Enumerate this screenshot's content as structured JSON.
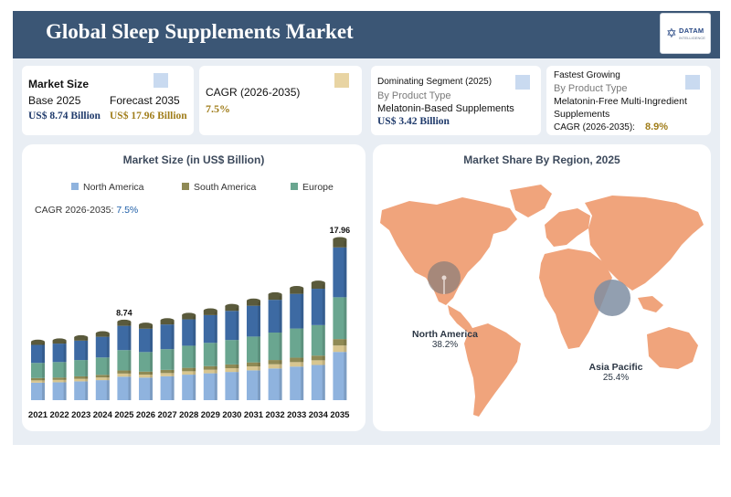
{
  "header": {
    "title": "Global Sleep Supplements Market"
  },
  "logo": {
    "brand": "DATAM",
    "sub": "INTELLIGENCE"
  },
  "cards": {
    "market_size": {
      "heading": "Market Size",
      "base_label": "Base 2025",
      "base_value": "US$ 8.74 Billion",
      "forecast_label": "Forecast 2035",
      "forecast_value": "US$ 17.96 Billion",
      "icon_color": "#c9daf0"
    },
    "cagr": {
      "heading": "CAGR (2026-2035)",
      "value": "7.5%",
      "icon_color": "#e8d4a3"
    },
    "dominating": {
      "heading": "Dominating Segment (2025)",
      "by": "By Product Type",
      "segment": "Melatonin-Based Supplements",
      "value": "US$ 3.42 Billion",
      "icon_color": "#c9daf0"
    },
    "fastest": {
      "heading": "Fastest Growing",
      "by": "By Product Type",
      "segment_line1": "Melatonin-Free Multi-Ingredient",
      "segment_line2": "Supplements",
      "cagr_label": "CAGR (2026-2035):",
      "cagr_value": "8.9%",
      "icon_color": "#c9daf0"
    }
  },
  "market_size_panel": {
    "title": "Market Size (in US$ Billion)",
    "cagr_label": "CAGR 2026-2035:",
    "cagr_value": "7.5%"
  },
  "region_panel": {
    "title": "Market Share By Region, 2025",
    "regions": [
      {
        "name": "North America",
        "share": "38.2%"
      },
      {
        "name": "Asia Pacific",
        "share": "25.4%"
      }
    ]
  },
  "colors": {
    "north_america": "#3d6aa3",
    "south_america": "#8f8a55",
    "europe": "#6aa690",
    "light_blue": "#8fb3de",
    "tan": "#d8c690",
    "top_cap": "#5a5a3c",
    "map": "#f0a47c"
  },
  "chart_data": {
    "type": "bar",
    "stacked": true,
    "categories": [
      "2021",
      "2022",
      "2023",
      "2024",
      "2025",
      "2026",
      "2027",
      "2028",
      "2029",
      "2030",
      "2031",
      "2032",
      "2033",
      "2034",
      "2035"
    ],
    "totals": [
      6.5,
      6.65,
      7.0,
      7.45,
      8.74,
      8.4,
      8.9,
      9.5,
      10.0,
      10.5,
      11.1,
      11.8,
      12.5,
      13.1,
      17.96
    ],
    "data_labels": [
      null,
      null,
      null,
      null,
      "8.74",
      null,
      null,
      null,
      null,
      null,
      null,
      null,
      null,
      null,
      "17.96"
    ],
    "series": [
      {
        "name": "North America",
        "color": "#8fb3de"
      },
      {
        "name": "South America",
        "color": "#8f8a55"
      },
      {
        "name": "Europe",
        "color": "#6aa690"
      }
    ]
  }
}
